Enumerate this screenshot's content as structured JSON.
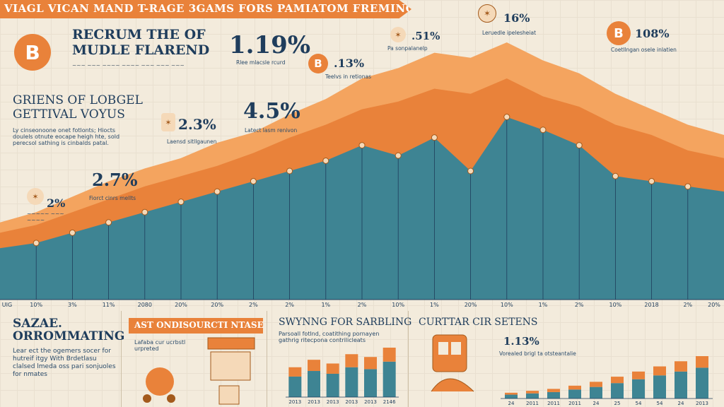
{
  "banner": {
    "title": "VIAGL VICAN MAND T-RAGE 3GAMS FORS PAMIATOM FREMING"
  },
  "colors": {
    "accent": "#e9823a",
    "teal": "#3e8493",
    "navy": "#1f3d5c",
    "bg": "#f3ebdc"
  },
  "left_panel": {
    "coin_symbol": "B",
    "heading1_line1": "RECRUM THE OF",
    "heading1_line2": "MUDLE FLAREND",
    "heading2_line1": "GRIENS OF LOBGEL",
    "heading2_line2": "GETTIVAL VOYUS",
    "body_text": "Ly cinseonoone onet fotlonts; Hiocts doulels otnute eocape heigh hte, sold perecsol sathing is cinbalds patal.",
    "callout_pct": "2%"
  },
  "callouts": [
    {
      "pct": "1.19%",
      "note": "Rlee mlacsle rcurd"
    },
    {
      "pct": ".13%",
      "note": "Teelvs in retionas"
    },
    {
      "pct": "4.5%",
      "note": "Latect lasm renivon"
    },
    {
      "pct": "2.3%",
      "note": "Laensd sitllgaunen"
    },
    {
      "pct": "2.7%",
      "note": "Fiorct cinrs mellts"
    },
    {
      "pct": ".51%",
      "note": "Pa sonpalanelp"
    },
    {
      "pct": "16%",
      "note": "Leruedle ipelesheiat"
    },
    {
      "pct": "108%",
      "note": "Coetllngan osele inlatien"
    }
  ],
  "chart_data": [
    {
      "type": "area",
      "title": "",
      "x_tick_labels": [
        "UIG",
        "10%",
        "3%",
        "11%",
        "2080",
        "20%",
        "20%",
        "2%",
        "2%",
        "1%",
        "2%",
        "10%",
        "1%",
        "20%",
        "10%",
        "1%",
        "2%",
        "10%",
        "2018",
        "2%",
        "20%"
      ],
      "series": [
        {
          "values": [
            30,
            34,
            40,
            46,
            51,
            55,
            61,
            65,
            72,
            78,
            86,
            90,
            96,
            94,
            100,
            93,
            88,
            80,
            74,
            68,
            64
          ]
        },
        {
          "values": [
            26,
            29,
            34,
            39,
            44,
            48,
            52,
            57,
            63,
            68,
            74,
            77,
            82,
            80,
            86,
            79,
            75,
            68,
            64,
            58,
            55
          ]
        },
        {
          "values": [
            20,
            22,
            26,
            30,
            34,
            38,
            42,
            46,
            50,
            54,
            60,
            56,
            63,
            50,
            71,
            66,
            60,
            48,
            46,
            44,
            42
          ]
        }
      ]
    },
    {
      "type": "bar",
      "categories": [
        "2013",
        "2013",
        "2013",
        "2013",
        "2013",
        "2146"
      ],
      "series": [
        {
          "values": [
            22,
            28,
            25,
            32,
            30,
            38
          ]
        },
        {
          "values": [
            10,
            12,
            11,
            14,
            13,
            15
          ]
        }
      ]
    },
    {
      "type": "bar",
      "categories": [
        "24",
        "2011",
        "2011",
        "2011",
        "24",
        "25",
        "54",
        "54",
        "24",
        "2013"
      ],
      "series": [
        {
          "values": [
            6,
            8,
            10,
            14,
            18,
            24,
            30,
            36,
            42,
            48
          ]
        },
        {
          "values": [
            3,
            4,
            5,
            6,
            8,
            10,
            12,
            14,
            16,
            18
          ]
        }
      ]
    }
  ],
  "bottom": {
    "panel1_title_line1": "SAZAE.",
    "panel1_title_line2": "ORROMMATING",
    "panel1_body": "Lear ect the ogemers socer for hutreif itgy With Brdetlasu clalsed lmeda oss pari sonjuoles for nmates",
    "panel2_title": "AST ONDISOURCTI NTASE",
    "panel2_body": "Lafaba cur ucrbstl urpreted",
    "panel3_title": "SWYNNG FOR SARBLING",
    "panel3_body": "Parsoall fotlnd, coatithing pornayen gathrig ritecpona contrilicleats",
    "panel4_title": "CURTTAR CIR SETENS",
    "panel4_pct": "1.13%",
    "panel4_note": "Vorealed brigl ta otsteantalie"
  }
}
